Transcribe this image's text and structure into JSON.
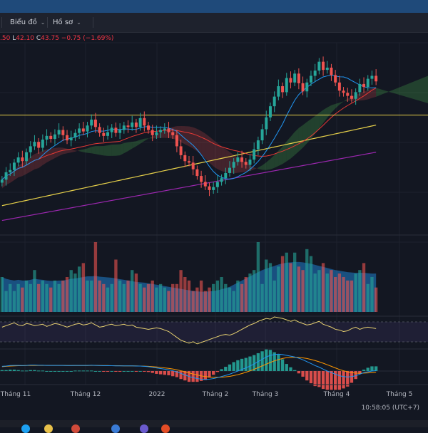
{
  "menu": {
    "chart_label": "Biểu đồ",
    "profile_label": "Hồ sơ"
  },
  "ohlc": {
    "open_partial": ".50",
    "low_label": "L",
    "low_value": "42.10",
    "close_label": "C",
    "close_value": "43.75",
    "change": "−0.75",
    "change_pct": "(−1.69%)"
  },
  "time_axis": {
    "labels": [
      "Tháng 11",
      "Tháng 12",
      "2022",
      "Tháng 2",
      "Tháng 3",
      "Tháng 4",
      "Tháng 5"
    ]
  },
  "status": {
    "clock": "10:58:05 (UTC+7)"
  },
  "colors": {
    "background": "#131722",
    "up_candle": "#26a69a",
    "down_candle": "#ef5350",
    "ma_fast": "#2196f3",
    "ma_mid": "#e53935",
    "ma_slow": "#e6d04a",
    "ma_long": "#9c27b0",
    "horizontal_level": "#e6d04a",
    "macd_line": "#2196f3",
    "signal_line": "#ff9800",
    "rsi_line": "#e6d070"
  },
  "chart_data": {
    "type": "candlestick",
    "price_series": [
      30.5,
      31.5,
      31.8,
      32.8,
      33.5,
      33.0,
      34.2,
      35.0,
      35.6,
      34.8,
      35.9,
      36.4,
      36.0,
      36.6,
      37.2,
      36.5,
      35.8,
      36.2,
      36.8,
      37.4,
      37.0,
      37.8,
      38.6,
      37.6,
      36.8,
      36.4,
      36.9,
      37.5,
      36.8,
      37.2,
      37.8,
      37.6,
      38.2,
      37.6,
      38.8,
      37.8,
      37.2,
      36.5,
      36.9,
      37.2,
      37.4,
      36.9,
      36.5,
      35.0,
      33.8,
      33.0,
      32.8,
      31.9,
      31.0,
      30.2,
      29.6,
      29.1,
      29.5,
      30.2,
      30.7,
      31.4,
      32.1,
      32.9,
      33.5,
      32.9,
      32.5,
      33.2,
      34.6,
      35.8,
      37.3,
      38.9,
      40.4,
      41.7,
      43.1,
      42.3,
      44.2,
      43.6,
      44.8,
      43.5,
      42.4,
      43.6,
      44.5,
      45.2,
      46.4,
      45.3,
      45.6,
      44.6,
      43.6,
      42.5,
      42.2,
      41.8,
      41.4,
      42.3,
      43.4,
      43.0,
      44.1,
      44.5,
      43.75
    ],
    "volume_series": [
      10,
      6,
      8,
      6,
      8,
      7,
      9,
      8,
      12,
      8,
      9,
      8,
      7,
      9,
      8,
      9,
      10,
      12,
      11,
      13,
      14,
      9,
      9,
      20,
      9,
      8,
      7,
      8,
      15,
      9,
      8,
      9,
      12,
      11,
      8,
      7,
      8,
      9,
      7,
      8,
      7,
      6,
      8,
      8,
      12,
      10,
      9,
      6,
      7,
      9,
      6,
      7,
      8,
      9,
      10,
      8,
      7,
      6,
      9,
      8,
      10,
      11,
      12,
      20,
      8,
      15,
      14,
      9,
      13,
      16,
      17,
      14,
      17,
      13,
      12,
      18,
      16,
      11,
      12,
      14,
      11,
      12,
      10,
      11,
      10,
      9,
      9,
      11,
      12,
      14,
      8,
      10,
      7
    ],
    "volume_ma_series": [
      10,
      9.5,
      9.2,
      9,
      9.2,
      9,
      9,
      9.2,
      9.5,
      9.3,
      9.2,
      9,
      8.9,
      8.9,
      9,
      9,
      9.2,
      9.5,
      9.6,
      9.8,
      10,
      10.2,
      10.2,
      10.3,
      10.1,
      10,
      9.9,
      9.8,
      9.6,
      9.4,
      9.2,
      9,
      8.8,
      8.6,
      8.5,
      8.4,
      8.2,
      8,
      7.8,
      7.6,
      7.4,
      7.2,
      7,
      6.8,
      6.6,
      6.4,
      6.2,
      6,
      5.9,
      5.8,
      5.8,
      5.9,
      6,
      6.2,
      6.5,
      6.8,
      7.2,
      7.8,
      8.4,
      9,
      9.6,
      10.2,
      10.8,
      11.4,
      12,
      12.4,
      12.8,
      13.2,
      13.6,
      13.9,
      14.1,
      14.2,
      14.3,
      14.3,
      14.2,
      14,
      13.8,
      13.5,
      13.2,
      12.9,
      12.6,
      12.3,
      12,
      11.8,
      11.6,
      11.4,
      11.3,
      11.2,
      11.2,
      11.2,
      11.1,
      11,
      11
    ],
    "rsi_series": [
      58,
      60,
      62,
      64,
      61,
      60,
      63,
      62,
      60,
      61,
      62,
      59,
      61,
      63,
      62,
      60,
      58,
      60,
      62,
      63,
      61,
      62,
      64,
      61,
      58,
      59,
      61,
      62,
      60,
      61,
      62,
      60,
      61,
      58,
      57,
      56,
      55,
      56,
      57,
      56,
      54,
      52,
      48,
      44,
      40,
      38,
      36,
      38,
      35,
      37,
      39,
      41,
      43,
      45,
      47,
      48,
      47,
      49,
      52,
      55,
      58,
      61,
      63,
      66,
      68,
      70,
      69,
      72,
      71,
      70,
      68,
      66,
      68,
      65,
      63,
      61,
      62,
      64,
      66,
      62,
      60,
      58,
      55,
      54,
      52,
      53,
      56,
      58,
      55,
      57,
      58,
      57,
      56
    ],
    "macd_series": [
      0.3,
      0.32,
      0.35,
      0.36,
      0.36,
      0.35,
      0.36,
      0.38,
      0.38,
      0.37,
      0.37,
      0.36,
      0.36,
      0.36,
      0.36,
      0.36,
      0.35,
      0.35,
      0.36,
      0.36,
      0.36,
      0.36,
      0.37,
      0.36,
      0.35,
      0.34,
      0.34,
      0.34,
      0.33,
      0.33,
      0.33,
      0.33,
      0.33,
      0.32,
      0.32,
      0.3,
      0.28,
      0.24,
      0.2,
      0.16,
      0.12,
      0.08,
      0.02,
      -0.05,
      -0.15,
      -0.25,
      -0.35,
      -0.42,
      -0.48,
      -0.52,
      -0.54,
      -0.52,
      -0.48,
      -0.42,
      -0.35,
      -0.28,
      -0.2,
      -0.1,
      0,
      0.1,
      0.2,
      0.32,
      0.45,
      0.6,
      0.75,
      0.9,
      1.0,
      1.05,
      1.08,
      1.05,
      1.0,
      0.95,
      0.9,
      0.82,
      0.72,
      0.6,
      0.48,
      0.35,
      0.25,
      0.12,
      0,
      -0.1,
      -0.2,
      -0.3,
      -0.35,
      -0.38,
      -0.35,
      -0.3,
      -0.2,
      -0.1,
      -0.05,
      0,
      0.02
    ],
    "signal_series": [
      0.28,
      0.3,
      0.32,
      0.33,
      0.34,
      0.34,
      0.35,
      0.36,
      0.36,
      0.36,
      0.36,
      0.36,
      0.36,
      0.36,
      0.36,
      0.36,
      0.35,
      0.35,
      0.35,
      0.35,
      0.35,
      0.35,
      0.36,
      0.36,
      0.35,
      0.35,
      0.35,
      0.34,
      0.34,
      0.34,
      0.33,
      0.33,
      0.33,
      0.33,
      0.32,
      0.31,
      0.3,
      0.28,
      0.26,
      0.23,
      0.2,
      0.17,
      0.13,
      0.08,
      0.02,
      -0.05,
      -0.12,
      -0.19,
      -0.25,
      -0.31,
      -0.35,
      -0.38,
      -0.4,
      -0.4,
      -0.39,
      -0.37,
      -0.34,
      -0.29,
      -0.23,
      -0.16,
      -0.08,
      0.01,
      0.11,
      0.22,
      0.33,
      0.44,
      0.55,
      0.65,
      0.73,
      0.8,
      0.85,
      0.87,
      0.88,
      0.87,
      0.84,
      0.8,
      0.74,
      0.67,
      0.59,
      0.5,
      0.4,
      0.3,
      0.2,
      0.1,
      0.02,
      -0.05,
      -0.1,
      -0.13,
      -0.14,
      -0.13,
      -0.12,
      -0.1,
      -0.08
    ],
    "horizontal_level": 39.2
  }
}
